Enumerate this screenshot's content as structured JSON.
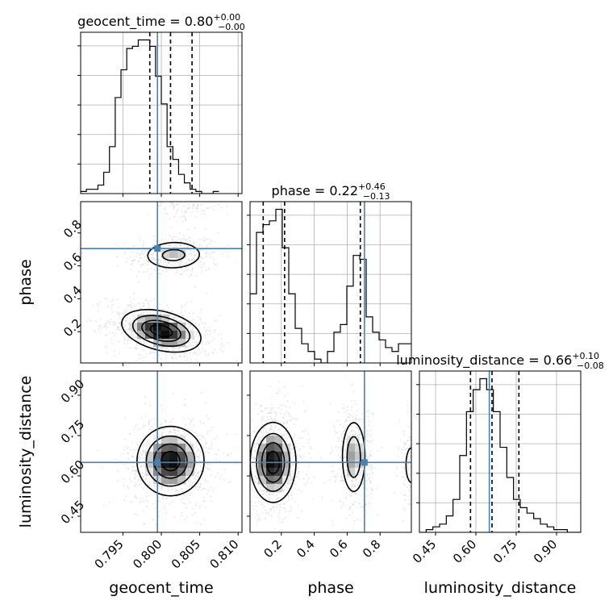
{
  "chart_data": {
    "type": "corner",
    "params": [
      {
        "name": "geocent_time",
        "axis_label": "geocent_time",
        "title_prefix": "geocent_time = ",
        "median": "0.80",
        "err_plus": "+0.00",
        "err_minus": "−0.00",
        "range": [
          0.7895,
          0.8105
        ],
        "ticks": [
          0.795,
          0.8,
          0.805,
          0.81
        ],
        "tick_labels": [
          "0.795",
          "0.800",
          "0.805",
          "0.810"
        ],
        "quantiles": [
          0.7985,
          0.8012,
          0.804
        ],
        "truth": 0.7995,
        "hist_edges_start": 0.7895,
        "hist_bin_width": 0.00075,
        "hist_counts": [
          1,
          2,
          2,
          4,
          10,
          22,
          45,
          58,
          68,
          69,
          72,
          72,
          69,
          55,
          42,
          22,
          16,
          9,
          5,
          2,
          1,
          0,
          0,
          1
        ]
      },
      {
        "name": "phase",
        "axis_label": "phase",
        "title_prefix": "phase = ",
        "median": "0.22",
        "err_plus": "+0.46",
        "err_minus": "−0.13",
        "range": [
          0.01,
          0.99
        ],
        "ticks": [
          0.2,
          0.4,
          0.6,
          0.8
        ],
        "tick_labels": [
          "0.2",
          "0.4",
          "0.6",
          "0.8"
        ],
        "quantiles": [
          0.09,
          0.22,
          0.68
        ],
        "truth": 0.705,
        "hist_edges_start": 0.01,
        "hist_bin_width": 0.0392,
        "hist_counts": [
          18,
          34,
          36,
          37,
          40,
          30,
          18,
          9,
          5,
          3,
          1,
          0,
          3,
          8,
          10,
          20,
          28,
          27,
          12,
          8,
          6,
          4,
          3,
          5,
          5
        ]
      },
      {
        "name": "luminosity_distance",
        "axis_label": "luminosity_distance",
        "title_prefix": "luminosity_distance = ",
        "median": "0.66",
        "err_plus": "+0.10",
        "err_minus": "−0.08",
        "range": [
          0.39,
          0.99
        ],
        "ticks": [
          0.45,
          0.6,
          0.75,
          0.9
        ],
        "tick_labels": [
          "0.45",
          "0.60",
          "0.75",
          "0.90"
        ],
        "quantiles": [
          0.58,
          0.66,
          0.76
        ],
        "truth": 0.65,
        "hist_edges_start": 0.39,
        "hist_bin_width": 0.025,
        "hist_counts": [
          0,
          1,
          2,
          3,
          6,
          12,
          28,
          44,
          52,
          56,
          52,
          44,
          31,
          20,
          12,
          9,
          7,
          5,
          3,
          2,
          1,
          1,
          0,
          0
        ]
      }
    ],
    "pair_contours": {
      "phase_vs_geocent_time": {
        "modes": [
          {
            "x": 0.8016,
            "y": 0.665,
            "sx": 0.0022,
            "sy": 0.05,
            "rho": 0.05,
            "weight": 0.45
          },
          {
            "x": 0.8,
            "y": 0.205,
            "sx": 0.0026,
            "sy": 0.065,
            "rho": -0.35,
            "weight": 1.0
          },
          {
            "x": 0.803,
            "y": 0.965,
            "sx": 0.0018,
            "sy": 0.03,
            "rho": 0.0,
            "weight": 0.12
          }
        ]
      },
      "luminosity_distance_vs_geocent_time": {
        "modes": [
          {
            "x": 0.8012,
            "y": 0.655,
            "sx": 0.0022,
            "sy": 0.065,
            "rho": 0.0,
            "weight": 1.0
          }
        ]
      },
      "luminosity_distance_vs_phase": {
        "modes": [
          {
            "x": 0.15,
            "y": 0.65,
            "sx": 0.07,
            "sy": 0.075,
            "rho": 0.0,
            "weight": 1.0
          },
          {
            "x": 0.64,
            "y": 0.67,
            "sx": 0.04,
            "sy": 0.075,
            "rho": 0.0,
            "weight": 0.6
          },
          {
            "x": 0.99,
            "y": 0.64,
            "sx": 0.03,
            "sy": 0.06,
            "rho": 0.0,
            "weight": 0.25
          }
        ]
      }
    },
    "colors": {
      "truth": "#4682b4",
      "line": "#000000",
      "grid": "#b0b0b0",
      "scatter": "#808080"
    },
    "grid": true
  }
}
